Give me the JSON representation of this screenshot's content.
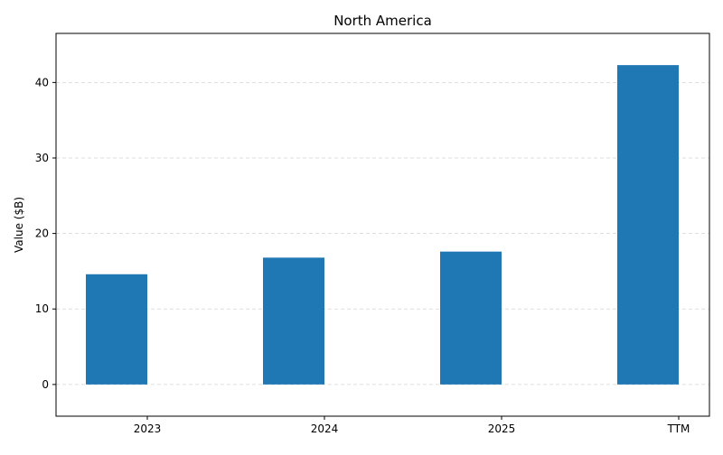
{
  "chart_data": {
    "type": "bar",
    "title": "North America",
    "xlabel": "",
    "ylabel": "Value ($B)",
    "categories": [
      "2023",
      "2024",
      "2025",
      "TTM"
    ],
    "values": [
      14.6,
      16.8,
      17.6,
      42.3
    ],
    "ylim": [
      -4.2,
      46.5
    ],
    "yticks": [
      0,
      10,
      20,
      30,
      40
    ],
    "grid": "y-dashed",
    "legend": "none",
    "colors": {
      "bar": "#1f77b4",
      "grid": "#d3d3d3",
      "axis": "#000000"
    }
  }
}
